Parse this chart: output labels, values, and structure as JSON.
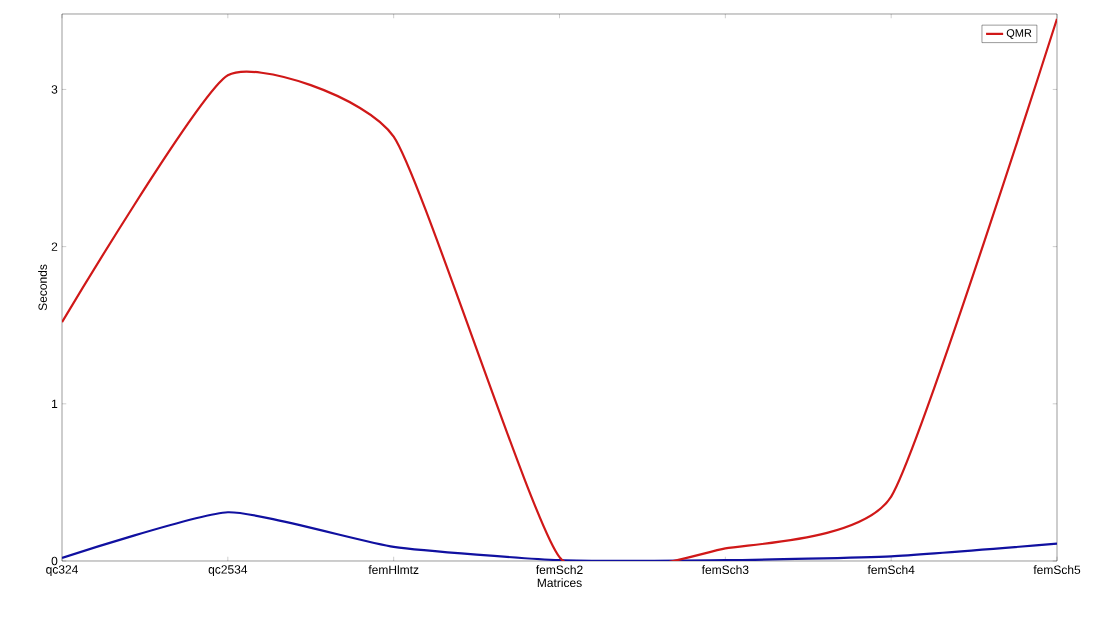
{
  "chart_data": {
    "type": "line",
    "xlabel": "Matrices",
    "ylabel": "Seconds",
    "categories": [
      "qc324",
      "qc2534",
      "femHlmtz",
      "femSch2",
      "femSch3",
      "femSch4",
      "femSch5"
    ],
    "series": [
      {
        "color": "#1010a0",
        "values": [
          0.02,
          0.31,
          0.09,
          0.005,
          0.005,
          0.03,
          0.11
        ]
      },
      {
        "name": "QMR",
        "color": "#d01818",
        "values": [
          1.52,
          3.09,
          2.7,
          0.025,
          0.08,
          0.41,
          3.45
        ]
      }
    ],
    "ylim": [
      0,
      3.48
    ],
    "yticks": [
      0,
      1,
      2,
      3
    ],
    "grid": false,
    "legend": "top right",
    "marker": "none",
    "line_style": "solid"
  }
}
